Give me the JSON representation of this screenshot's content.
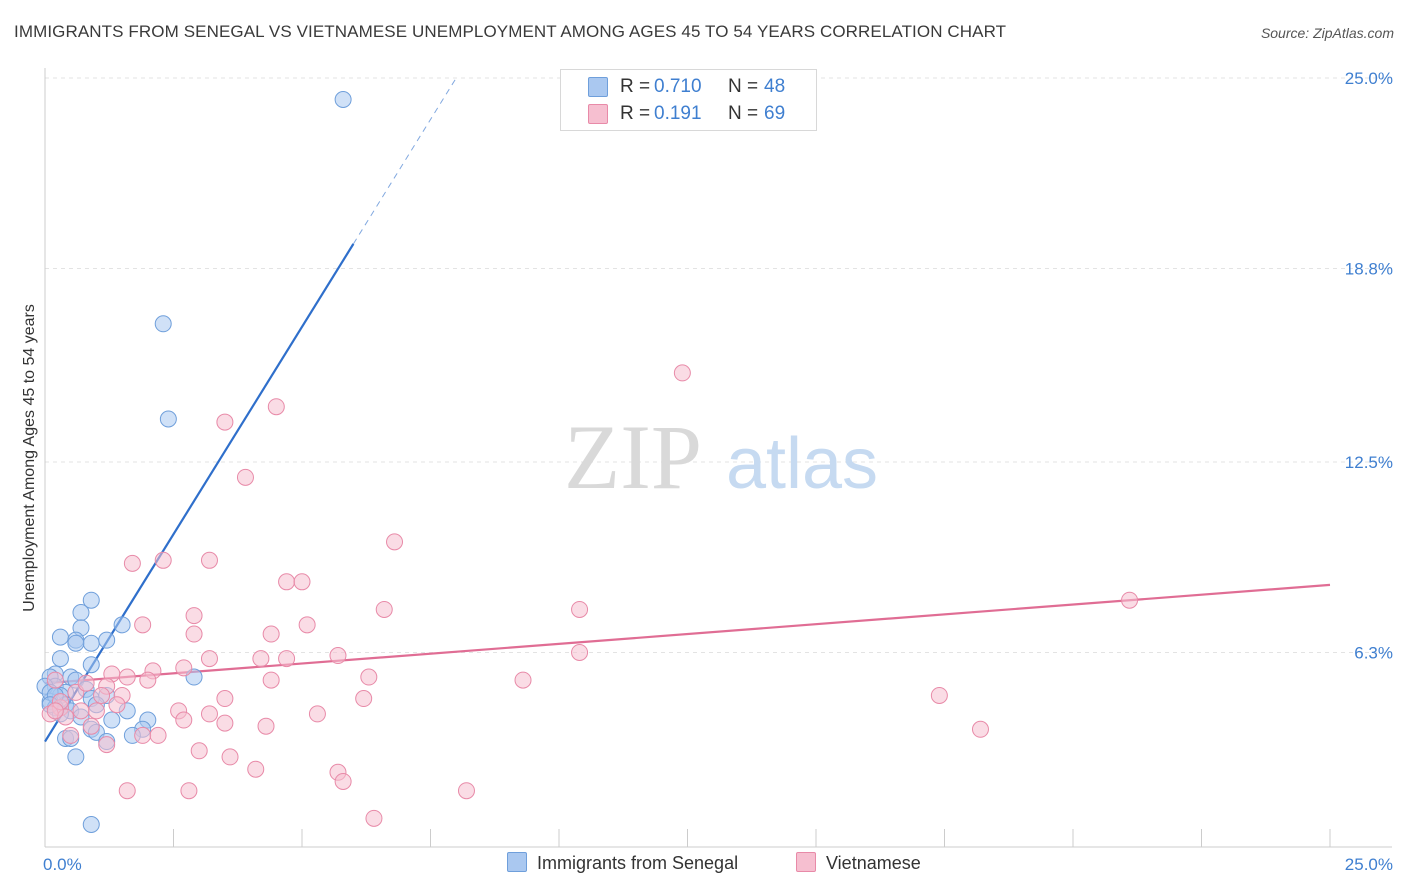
{
  "title": "IMMIGRANTS FROM SENEGAL VS VIETNAMESE UNEMPLOYMENT AMONG AGES 45 TO 54 YEARS CORRELATION CHART",
  "source": "Source: ZipAtlas.com",
  "watermark": {
    "zip": "ZIP",
    "atlas": "atlas"
  },
  "colors": {
    "blue_fill": "#aac8f0",
    "blue_stroke": "#6f9fdb",
    "blue_line": "#2f6fcb",
    "pink_fill": "#f6bfd0",
    "pink_stroke": "#e88aa8",
    "pink_line": "#e06d94",
    "accent_text": "#3f7fd0",
    "grid": "#e3e3e3"
  },
  "legend_top": {
    "rows": [
      {
        "r_label": "R =",
        "r_value": "0.710",
        "n_label": "N =",
        "n_value": "48"
      },
      {
        "r_label": "R =",
        "r_value": "0.191",
        "n_label": "N =",
        "n_value": "69"
      }
    ]
  },
  "legend_bottom": [
    "Immigrants from Senegal",
    "Vietnamese"
  ],
  "chart_data": {
    "type": "scatter",
    "xlabel": "",
    "ylabel": "Unemployment Among Ages 45 to 54 years",
    "xlim": [
      0,
      25
    ],
    "ylim": [
      0,
      25
    ],
    "x_tick_labels": [
      "0.0%",
      "25.0%"
    ],
    "y_tick_labels": [
      "6.3%",
      "12.5%",
      "18.8%",
      "25.0%"
    ],
    "y_ticks": [
      6.3,
      12.5,
      18.8,
      25.0
    ],
    "x_minor_ticks": [
      0,
      2.5,
      5,
      7.5,
      10,
      12.5,
      15,
      17.5,
      20,
      22.5,
      25
    ],
    "series": [
      {
        "name": "Immigrants from Senegal",
        "r": 0.71,
        "n": 48,
        "trend": {
          "x0": 0,
          "y0": 3.4,
          "x1": 6.0,
          "y1": 19.6,
          "dash_to_x": 8.0,
          "dash_to_y": 25.0
        },
        "points": [
          [
            5.8,
            24.3
          ],
          [
            2.3,
            17.0
          ],
          [
            2.4,
            13.9
          ],
          [
            0.9,
            8.0
          ],
          [
            0.7,
            7.6
          ],
          [
            1.5,
            7.2
          ],
          [
            0.7,
            7.1
          ],
          [
            0.3,
            6.8
          ],
          [
            0.6,
            6.7
          ],
          [
            0.9,
            6.6
          ],
          [
            0.6,
            6.6
          ],
          [
            1.2,
            6.7
          ],
          [
            0.3,
            6.1
          ],
          [
            0.9,
            5.9
          ],
          [
            0.2,
            5.6
          ],
          [
            0.5,
            5.5
          ],
          [
            0.1,
            5.5
          ],
          [
            0.6,
            5.4
          ],
          [
            0.2,
            5.2
          ],
          [
            0.0,
            5.2
          ],
          [
            0.8,
            5.1
          ],
          [
            0.4,
            5.0
          ],
          [
            0.3,
            4.9
          ],
          [
            0.9,
            4.8
          ],
          [
            1.2,
            4.9
          ],
          [
            0.1,
            4.7
          ],
          [
            0.4,
            4.6
          ],
          [
            1.0,
            4.6
          ],
          [
            0.2,
            4.5
          ],
          [
            0.5,
            4.4
          ],
          [
            0.3,
            4.3
          ],
          [
            1.6,
            4.4
          ],
          [
            0.7,
            4.2
          ],
          [
            1.3,
            4.1
          ],
          [
            2.0,
            4.1
          ],
          [
            0.9,
            3.8
          ],
          [
            1.9,
            3.8
          ],
          [
            1.0,
            3.7
          ],
          [
            0.4,
            3.5
          ],
          [
            0.5,
            3.5
          ],
          [
            1.7,
            3.6
          ],
          [
            1.2,
            3.4
          ],
          [
            0.6,
            2.9
          ],
          [
            0.9,
            0.7
          ],
          [
            2.9,
            5.5
          ],
          [
            0.1,
            5.0
          ],
          [
            0.2,
            4.9
          ],
          [
            0.1,
            4.6
          ]
        ]
      },
      {
        "name": "Vietnamese",
        "r": 0.191,
        "n": 69,
        "trend": {
          "x0": 0,
          "y0": 5.3,
          "x1": 25,
          "y1": 8.5
        },
        "points": [
          [
            12.4,
            15.4
          ],
          [
            4.5,
            14.3
          ],
          [
            3.5,
            13.8
          ],
          [
            3.9,
            12.0
          ],
          [
            6.8,
            9.9
          ],
          [
            1.7,
            9.2
          ],
          [
            2.3,
            9.3
          ],
          [
            3.2,
            9.3
          ],
          [
            4.7,
            8.6
          ],
          [
            5.0,
            8.6
          ],
          [
            21.1,
            8.0
          ],
          [
            6.6,
            7.7
          ],
          [
            10.4,
            7.7
          ],
          [
            2.9,
            7.5
          ],
          [
            1.9,
            7.2
          ],
          [
            5.1,
            7.2
          ],
          [
            4.4,
            6.9
          ],
          [
            2.9,
            6.9
          ],
          [
            3.2,
            6.1
          ],
          [
            4.2,
            6.1
          ],
          [
            4.7,
            6.1
          ],
          [
            5.7,
            6.2
          ],
          [
            10.4,
            6.3
          ],
          [
            2.7,
            5.8
          ],
          [
            2.1,
            5.7
          ],
          [
            1.3,
            5.6
          ],
          [
            1.6,
            5.5
          ],
          [
            2.0,
            5.4
          ],
          [
            4.4,
            5.4
          ],
          [
            6.3,
            5.5
          ],
          [
            9.3,
            5.4
          ],
          [
            0.2,
            5.4
          ],
          [
            1.2,
            5.2
          ],
          [
            0.6,
            5.0
          ],
          [
            1.1,
            4.9
          ],
          [
            1.5,
            4.9
          ],
          [
            3.5,
            4.8
          ],
          [
            6.2,
            4.8
          ],
          [
            17.4,
            4.9
          ],
          [
            0.3,
            4.5
          ],
          [
            1.0,
            4.4
          ],
          [
            0.1,
            4.3
          ],
          [
            2.6,
            4.4
          ],
          [
            3.2,
            4.3
          ],
          [
            5.3,
            4.3
          ],
          [
            0.4,
            4.2
          ],
          [
            2.7,
            4.1
          ],
          [
            3.5,
            4.0
          ],
          [
            0.9,
            3.9
          ],
          [
            4.3,
            3.9
          ],
          [
            18.2,
            3.8
          ],
          [
            1.9,
            3.6
          ],
          [
            2.2,
            3.6
          ],
          [
            0.5,
            3.6
          ],
          [
            1.2,
            3.3
          ],
          [
            3.0,
            3.1
          ],
          [
            3.6,
            2.9
          ],
          [
            4.1,
            2.5
          ],
          [
            5.7,
            2.4
          ],
          [
            5.8,
            2.1
          ],
          [
            1.6,
            1.8
          ],
          [
            2.8,
            1.8
          ],
          [
            8.2,
            1.8
          ],
          [
            6.4,
            0.9
          ],
          [
            0.3,
            4.7
          ],
          [
            0.7,
            4.4
          ],
          [
            1.4,
            4.6
          ],
          [
            0.2,
            4.4
          ],
          [
            0.8,
            5.3
          ]
        ]
      }
    ]
  }
}
